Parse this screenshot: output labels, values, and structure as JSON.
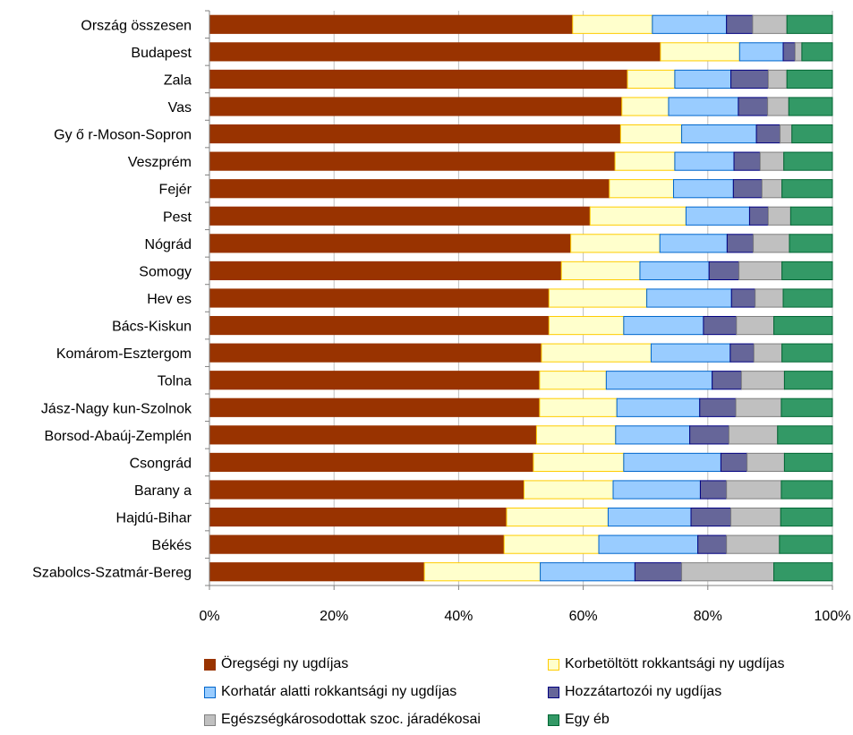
{
  "chart_data": {
    "type": "bar",
    "orientation": "horizontal",
    "stacked": "percent",
    "categories": [
      "Ország összesen",
      "Budapest",
      "Zala",
      "Vas",
      "Gy ő r-Moson-Sopron",
      "Veszprém",
      "Fejér",
      "Pest",
      "Nógrád",
      "Somogy",
      "Hev es",
      "Bács-Kiskun",
      "Komárom-Esztergom",
      "Tolna",
      "Jász-Nagy kun-Szolnok",
      "Borsod-Abaúj-Zemplén",
      "Csongrád",
      "Barany a",
      "Hajdú-Bihar",
      "Békés",
      "Szabolcs-Szatmár-Bereg"
    ],
    "series": [
      {
        "name": "Öregségi ny ugdíjas",
        "color": "#993300",
        "border": "#993300",
        "values": [
          58.3,
          72.4,
          67.1,
          66.2,
          66.0,
          65.1,
          64.2,
          61.1,
          58.0,
          56.5,
          54.5,
          54.5,
          53.3,
          53.0,
          53.0,
          52.5,
          52.0,
          50.5,
          47.7,
          47.3,
          34.5
        ]
      },
      {
        "name": "Korbetöltött rokkantsági ny ugdíjas",
        "color": "#ffffcc",
        "border": "#ffcc00",
        "values": [
          12.8,
          12.7,
          7.6,
          7.5,
          9.8,
          9.6,
          10.3,
          15.4,
          14.3,
          12.6,
          15.7,
          12.0,
          17.6,
          10.7,
          12.4,
          12.7,
          14.5,
          14.3,
          16.3,
          15.2,
          18.6
        ]
      },
      {
        "name": "Korhatár alatti rokkantsági ny ugdíjas",
        "color": "#99ccff",
        "border": "#0066cc",
        "values": [
          11.9,
          7.0,
          9.0,
          11.2,
          12.0,
          9.5,
          9.6,
          10.2,
          10.8,
          11.1,
          13.6,
          12.8,
          12.7,
          17.0,
          13.3,
          11.9,
          15.6,
          14.0,
          13.3,
          15.9,
          15.2
        ]
      },
      {
        "name": "Hozzátartozói ny ugdíjas",
        "color": "#666699",
        "border": "#000080",
        "values": [
          4.2,
          1.9,
          6.0,
          4.7,
          3.8,
          4.2,
          4.6,
          3.0,
          4.2,
          4.8,
          3.8,
          5.3,
          3.8,
          4.7,
          5.8,
          6.3,
          4.2,
          4.2,
          6.4,
          4.6,
          7.5
        ]
      },
      {
        "name": "Egészségkárosodottak szoc. járadékosai",
        "color": "#c0c0c0",
        "border": "#808080",
        "values": [
          5.5,
          1.1,
          3.0,
          3.4,
          1.9,
          3.8,
          3.2,
          3.6,
          5.8,
          6.9,
          4.5,
          6.0,
          4.5,
          6.9,
          7.3,
          7.8,
          6.0,
          8.8,
          8.0,
          8.5,
          14.8
        ]
      },
      {
        "name": "Egy éb",
        "color": "#339966",
        "border": "#006633",
        "values": [
          7.3,
          4.9,
          7.3,
          7.0,
          6.5,
          7.8,
          8.1,
          6.7,
          6.9,
          8.1,
          7.9,
          9.4,
          8.1,
          7.7,
          8.2,
          8.8,
          7.7,
          8.2,
          8.3,
          8.5,
          9.4
        ]
      }
    ],
    "xlim": [
      0,
      100
    ],
    "xticks": [
      "0%",
      "20%",
      "40%",
      "60%",
      "80%",
      "100%"
    ],
    "grid": true,
    "legend_position": "bottom"
  }
}
